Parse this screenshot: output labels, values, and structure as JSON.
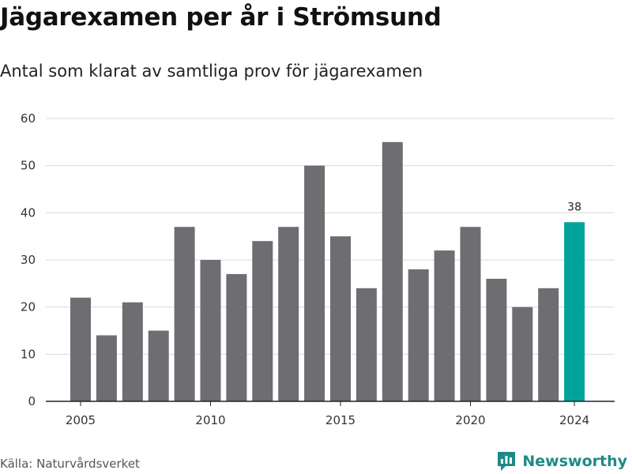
{
  "header": {
    "title": "Jägarexamen per år i Strömsund",
    "subtitle": "Antal som klarat av samtliga prov för jägarexamen"
  },
  "footer": {
    "source": "Källa: Naturvårdsverket",
    "brand": "Newsworthy",
    "brand_icon": "bar-chart-logo-icon"
  },
  "colors": {
    "bar": "#6e6d72",
    "highlight": "#00a39a",
    "grid": "#d9d9d9",
    "axis": "#222222",
    "brand": "#1e8a86"
  },
  "chart_data": {
    "type": "bar",
    "title": "Jägarexamen per år i Strömsund",
    "subtitle": "Antal som klarat av samtliga prov för jägarexamen",
    "categories": [
      2005,
      2006,
      2007,
      2008,
      2009,
      2010,
      2011,
      2012,
      2013,
      2014,
      2015,
      2016,
      2017,
      2018,
      2019,
      2020,
      2021,
      2022,
      2023,
      2024
    ],
    "values": [
      22,
      14,
      21,
      15,
      37,
      30,
      27,
      34,
      37,
      50,
      35,
      24,
      55,
      28,
      32,
      37,
      26,
      20,
      24,
      38
    ],
    "highlight_category": 2024,
    "data_labels": [
      {
        "category": 2024,
        "label": "38"
      }
    ],
    "x_ticks": [
      2005,
      2010,
      2015,
      2020,
      2024
    ],
    "y_ticks": [
      0,
      10,
      20,
      30,
      40,
      50,
      60
    ],
    "ylim": [
      0,
      60
    ],
    "xlabel": "",
    "ylabel": "",
    "grid": "horizontal",
    "legend": "none"
  }
}
